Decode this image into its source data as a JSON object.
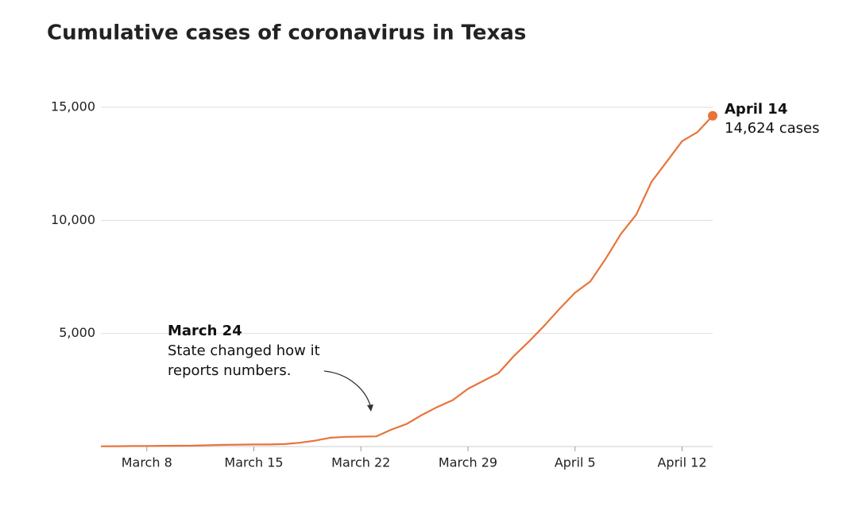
{
  "chart_data": {
    "type": "line",
    "title": "Cumulative cases of coronavirus in Texas",
    "x": [
      "March 5",
      "March 6",
      "March 7",
      "March 8",
      "March 9",
      "March 10",
      "March 11",
      "March 12",
      "March 13",
      "March 14",
      "March 15",
      "March 16",
      "March 17",
      "March 18",
      "March 19",
      "March 20",
      "March 21",
      "March 22",
      "March 23",
      "March 24",
      "March 25",
      "March 26",
      "March 27",
      "March 28",
      "March 29",
      "March 30",
      "March 31",
      "April 1",
      "April 2",
      "April 3",
      "April 4",
      "April 5",
      "April 6",
      "April 7",
      "April 8",
      "April 9",
      "April 10",
      "April 11",
      "April 12",
      "April 13",
      "April 14"
    ],
    "series": [
      {
        "name": "Cumulative cases",
        "color": "#e8743b",
        "values": [
          10,
          15,
          20,
          25,
          30,
          35,
          40,
          60,
          75,
          85,
          90,
          90,
          110,
          170,
          260,
          390,
          430,
          440,
          450,
          750,
          1000,
          1400,
          1750,
          2050,
          2550,
          2900,
          3250,
          4000,
          4650,
          5350,
          6100,
          6800,
          7300,
          8300,
          9400,
          10250,
          11700,
          12600,
          13500,
          13900,
          14624
        ]
      }
    ],
    "xticks": [
      "March 8",
      "March 15",
      "March 22",
      "March 29",
      "April 5",
      "April 12"
    ],
    "ylim": [
      0,
      15000
    ],
    "yticks": [
      {
        "value": 5000,
        "label": "5,000"
      },
      {
        "value": 10000,
        "label": "10,000"
      },
      {
        "value": 15000,
        "label": "15,000"
      }
    ],
    "grid": true,
    "annotations": [
      {
        "title": "April 14",
        "lines": [
          "14,624 cases"
        ]
      },
      {
        "title": "March 24",
        "lines": [
          "State changed how it",
          "reports numbers."
        ]
      }
    ]
  }
}
